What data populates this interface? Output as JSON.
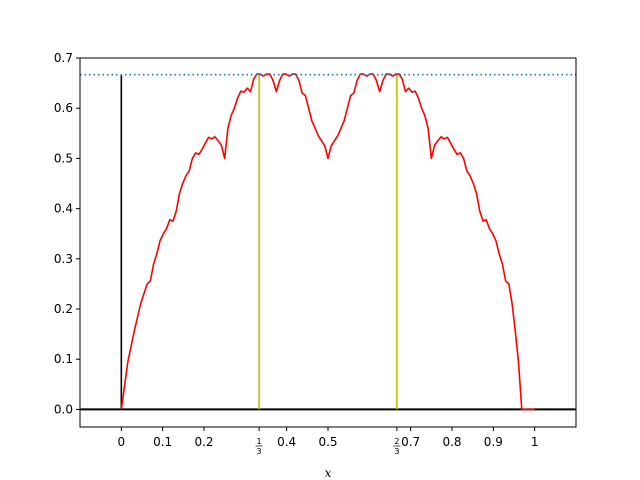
{
  "chart_data": {
    "type": "line",
    "title": "",
    "xlabel": "x",
    "ylabel": "",
    "xlim": [
      -0.1,
      1.1
    ],
    "ylim": [
      -0.035,
      0.7
    ],
    "grid": false,
    "xticks": [
      {
        "value": 0,
        "label": "0"
      },
      {
        "value": 0.1,
        "label": "0.1"
      },
      {
        "value": 0.2,
        "label": "0.2"
      },
      {
        "value": 0.3333,
        "label": "1/3",
        "fraction": [
          "1",
          "3"
        ]
      },
      {
        "value": 0.4,
        "label": "0.4"
      },
      {
        "value": 0.5,
        "label": "0.5"
      },
      {
        "value": 0.6667,
        "label": "2/3",
        "fraction": [
          "2",
          "3"
        ]
      },
      {
        "value": 0.7,
        "label": "0.7"
      },
      {
        "value": 0.8,
        "label": "0.8"
      },
      {
        "value": 0.9,
        "label": "0.9"
      },
      {
        "value": 1,
        "label": "1"
      }
    ],
    "yticks": [
      0.0,
      0.1,
      0.2,
      0.3,
      0.4,
      0.5,
      0.6,
      0.7
    ],
    "ytick_labels": [
      "0.0",
      "0.1",
      "0.2",
      "0.3",
      "0.4",
      "0.5",
      "0.6",
      "0.7"
    ],
    "series": [
      {
        "style": "solid",
        "color": "#ff0000",
        "x": [
          0.0,
          0.0156,
          0.03125,
          0.0469,
          0.0625,
          0.0703,
          0.0781,
          0.0859,
          0.09375,
          0.1016,
          0.1094,
          0.1172,
          0.125,
          0.1328,
          0.1406,
          0.1484,
          0.15625,
          0.1641,
          0.1719,
          0.1797,
          0.1875,
          0.1953,
          0.2031,
          0.2109,
          0.21875,
          0.2266,
          0.2344,
          0.2422,
          0.25,
          0.2578,
          0.2656,
          0.2734,
          0.28125,
          0.2891,
          0.2969,
          0.3047,
          0.3125,
          0.3203,
          0.3281,
          0.3359,
          0.34375,
          0.3516,
          0.3594,
          0.3672,
          0.375,
          0.3828,
          0.3906,
          0.3984,
          0.40625,
          0.4141,
          0.4219,
          0.4297,
          0.4375,
          0.4453,
          0.4531,
          0.4609,
          0.46875,
          0.4766,
          0.4844,
          0.4922,
          0.5,
          0.5078,
          0.5156,
          0.5234,
          0.53125,
          0.5391,
          0.5469,
          0.5547,
          0.5625,
          0.5703,
          0.5781,
          0.5859,
          0.59375,
          0.6016,
          0.6094,
          0.6172,
          0.625,
          0.6328,
          0.6406,
          0.6484,
          0.65625,
          0.6641,
          0.6719,
          0.6797,
          0.6875,
          0.6953,
          0.7031,
          0.7109,
          0.71875,
          0.7266,
          0.7344,
          0.7422,
          0.75,
          0.7578,
          0.7656,
          0.7734,
          0.78125,
          0.7891,
          0.7969,
          0.8047,
          0.8125,
          0.8203,
          0.8281,
          0.8359,
          0.84375,
          0.8516,
          0.8594,
          0.8672,
          0.875,
          0.8828,
          0.8906,
          0.8984,
          0.90625,
          0.9141,
          0.9219,
          0.9297,
          0.9375,
          0.9453,
          0.9531,
          0.9609,
          0.96875,
          0.9844,
          1.0
        ],
        "y": [
          0.0,
          0.094,
          0.156,
          0.211,
          0.25,
          0.256,
          0.29,
          0.31,
          0.336,
          0.35,
          0.36,
          0.378,
          0.375,
          0.395,
          0.43,
          0.45,
          0.465,
          0.475,
          0.5,
          0.511,
          0.508,
          0.518,
          0.53,
          0.542,
          0.539,
          0.543,
          0.535,
          0.526,
          0.5,
          0.56,
          0.585,
          0.6,
          0.62,
          0.634,
          0.632,
          0.64,
          0.633,
          0.658,
          0.668,
          0.668,
          0.664,
          0.668,
          0.668,
          0.655,
          0.633,
          0.655,
          0.668,
          0.668,
          0.664,
          0.668,
          0.668,
          0.655,
          0.63,
          0.625,
          0.6,
          0.575,
          0.56,
          0.545,
          0.535,
          0.525,
          0.5,
          0.525,
          0.535,
          0.545,
          0.56,
          0.575,
          0.6,
          0.625,
          0.63,
          0.655,
          0.668,
          0.668,
          0.664,
          0.668,
          0.668,
          0.655,
          0.633,
          0.655,
          0.668,
          0.668,
          0.664,
          0.668,
          0.668,
          0.658,
          0.633,
          0.64,
          0.632,
          0.634,
          0.62,
          0.6,
          0.585,
          0.56,
          0.5,
          0.526,
          0.535,
          0.543,
          0.539,
          0.542,
          0.53,
          0.518,
          0.508,
          0.511,
          0.5,
          0.475,
          0.465,
          0.45,
          0.43,
          0.395,
          0.375,
          0.378,
          0.36,
          0.35,
          0.336,
          0.31,
          0.29,
          0.256,
          0.25,
          0.211,
          0.156,
          0.094,
          0.0,
          0.0,
          0.0
        ]
      },
      {
        "style": "dotted",
        "color": "#1f77b4",
        "x": [
          -0.1,
          1.1
        ],
        "y": [
          0.6667,
          0.6667
        ]
      }
    ],
    "reference_lines": [
      {
        "orientation": "horizontal",
        "value": 0.0,
        "color": "#000000"
      },
      {
        "orientation": "vertical",
        "value": 0.0,
        "from": 0.0,
        "to": 0.6667,
        "color": "#000000"
      },
      {
        "orientation": "vertical",
        "value": 0.3333,
        "from": 0.0,
        "to": 0.6667,
        "color": "#bfbf00"
      },
      {
        "orientation": "vertical",
        "value": 0.6667,
        "from": 0.0,
        "to": 0.6667,
        "color": "#bfbf00"
      }
    ]
  }
}
